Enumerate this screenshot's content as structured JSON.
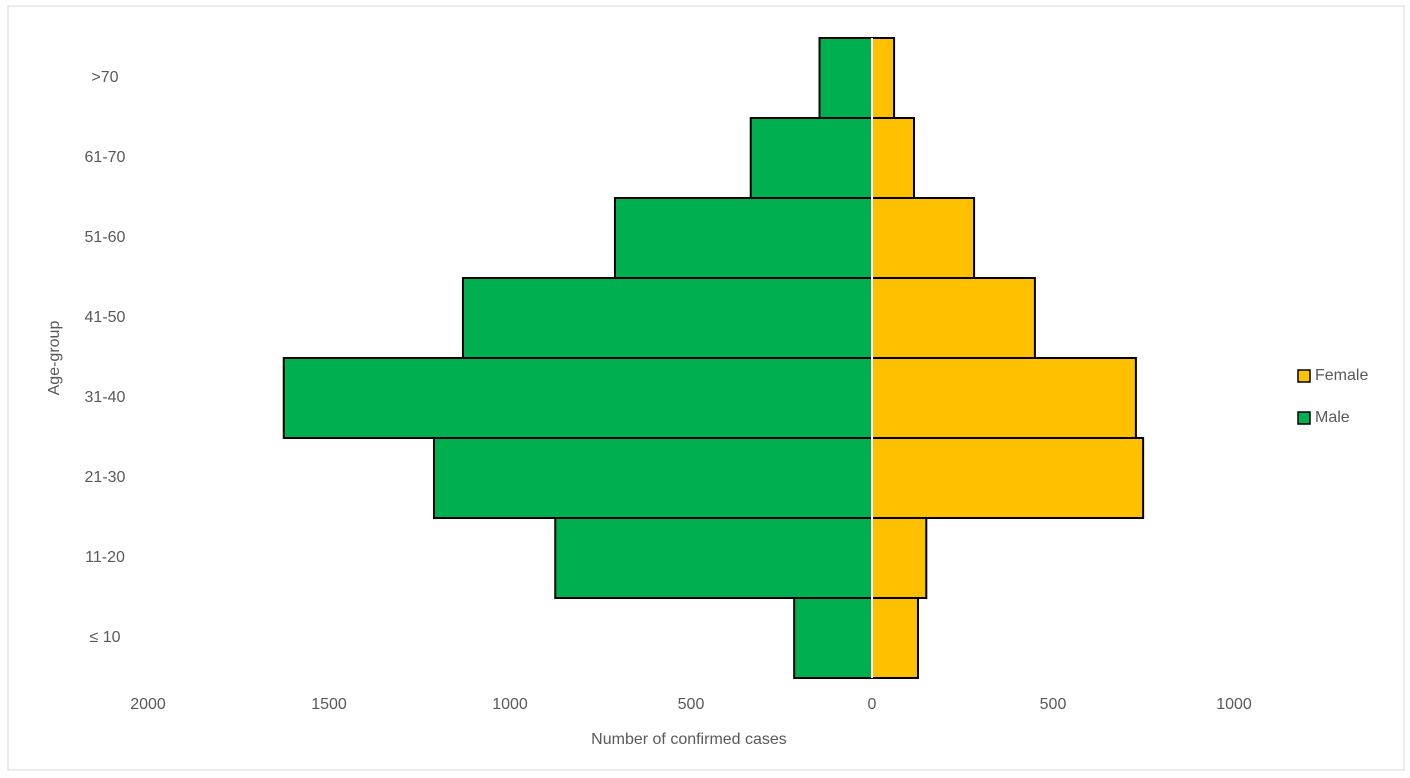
{
  "chart_data": {
    "type": "bar",
    "orientation": "horizontal",
    "x_label": "Number of confirmed cases",
    "y_label": "Age-group",
    "categories": [
      "≤ 10",
      "11-20",
      "21-30",
      "31-40",
      "41-50",
      "51-60",
      "61-70",
      ">70"
    ],
    "series": [
      {
        "name": "Female",
        "color": "#ffc000",
        "values": [
          127,
          150,
          749,
          729,
          450,
          282,
          116,
          61
        ]
      },
      {
        "name": "Male",
        "color": "#00b050",
        "values": [
          -215,
          -875,
          -1210,
          -1625,
          -1130,
          -710,
          -335,
          -145
        ]
      }
    ],
    "xlim": [
      -2000,
      1000
    ],
    "xticks": [
      {
        "value": -2000,
        "label": "2000"
      },
      {
        "value": -1500,
        "label": "1500"
      },
      {
        "value": -1000,
        "label": "1000"
      },
      {
        "value": -500,
        "label": "500"
      },
      0,
      500,
      1000
    ],
    "legend": "right"
  }
}
